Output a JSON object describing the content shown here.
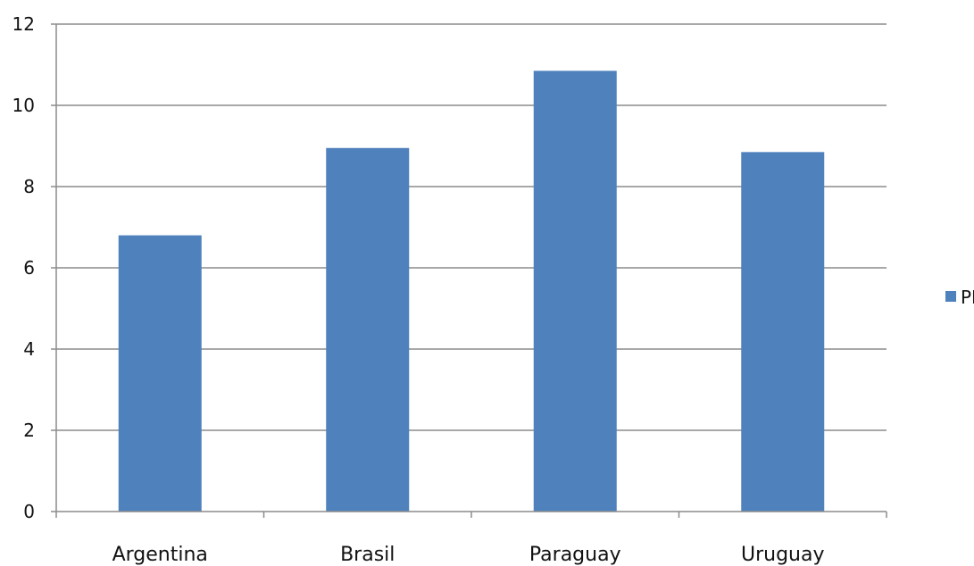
{
  "chart_data": {
    "type": "bar",
    "categories": [
      "Argentina",
      "Brasil",
      "Paraguay",
      "Uruguay"
    ],
    "series": [
      {
        "name": "PBI",
        "values": [
          6.8,
          8.95,
          10.85,
          8.85
        ],
        "color": "#4F81BD"
      }
    ],
    "ylim": [
      0,
      12
    ],
    "yticks": [
      "0",
      "2",
      "4",
      "6",
      "8",
      "10",
      "12"
    ],
    "grid": true,
    "legend": "right",
    "title": "",
    "xlabel": "",
    "ylabel": ""
  }
}
